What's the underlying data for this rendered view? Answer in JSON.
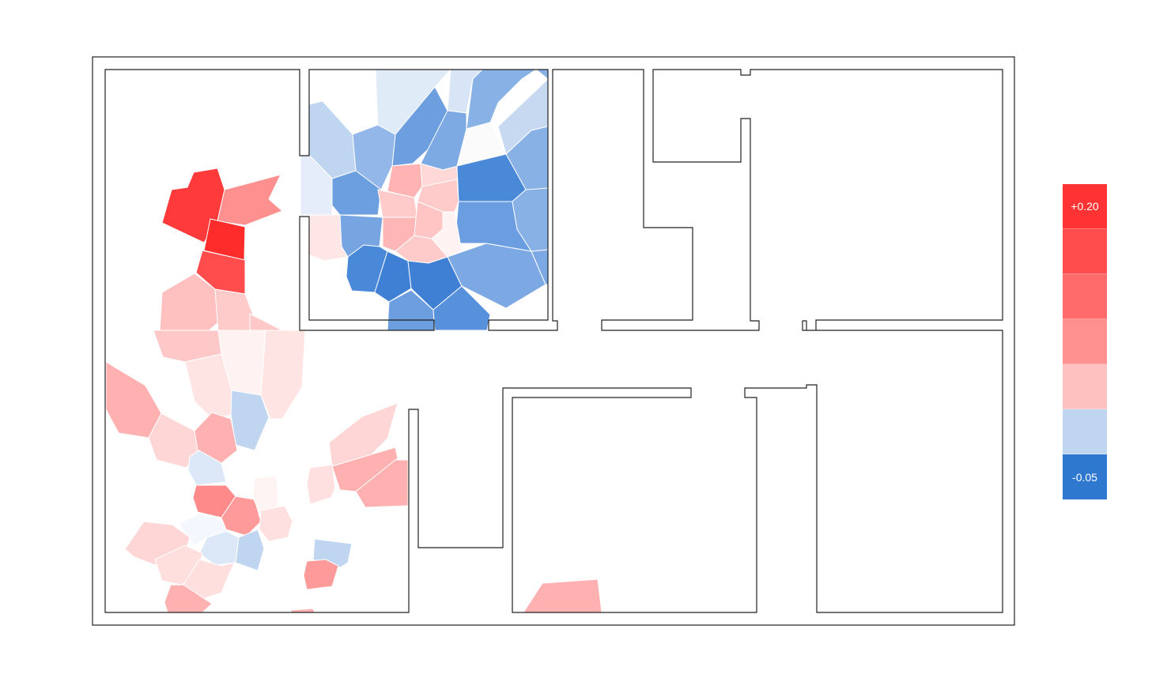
{
  "colors": {
    "red_max": "#ff3333",
    "red_2": "#ff4d4d",
    "red_3": "#ff6b6b",
    "red_4": "#ff9090",
    "red_5": "#ffc0c0",
    "blue_light": "#c0d6f0",
    "blue_max": "#2f78cf",
    "wall": "#222222"
  },
  "legend": {
    "bins": [
      {
        "color": "#ff3333",
        "label": "+0.20"
      },
      {
        "color": "#ff4d4d",
        "label": ""
      },
      {
        "color": "#ff6b6b",
        "label": ""
      },
      {
        "color": "#ff9090",
        "label": ""
      },
      {
        "color": "#ffc0c0",
        "label": ""
      },
      {
        "color": "#c0d6f0",
        "label": ""
      },
      {
        "color": "#2f78cf",
        "label": "-0.05"
      }
    ]
  }
}
